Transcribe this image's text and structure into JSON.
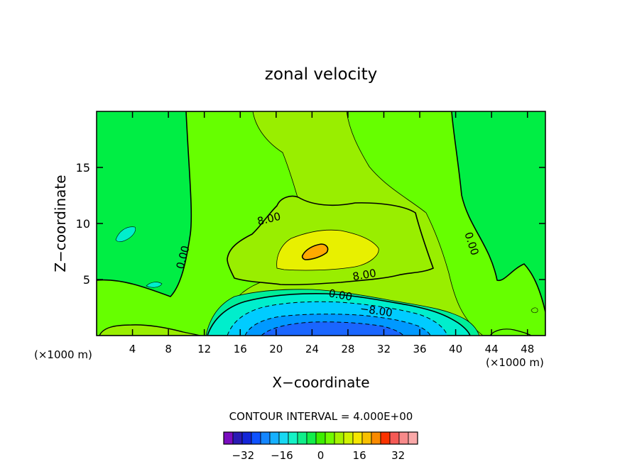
{
  "chart_data": {
    "type": "heatmap",
    "title": "zonal velocity",
    "xlabel": "X−coordinate",
    "ylabel": "Z−coordinate",
    "x_unit_left": "(×1000 m)",
    "x_unit_right": "(×1000 m)",
    "xlim": [
      0,
      50
    ],
    "ylim": [
      0,
      20
    ],
    "x_ticks": [
      4,
      8,
      12,
      16,
      20,
      24,
      28,
      32,
      36,
      40,
      44,
      48
    ],
    "y_ticks": [
      5,
      10,
      15
    ],
    "contour_interval_text": "CONTOUR INTERVAL =  4.000E+00",
    "contour_labels": [
      {
        "text": "8.00",
        "x": 19.3,
        "z": 10.1
      },
      {
        "text": "0.00",
        "x": 10.0,
        "z": 6.9
      },
      {
        "text": "0.00",
        "x": 41.4,
        "z": 8.1
      },
      {
        "text": "8.00",
        "x": 29.9,
        "z": 5.1
      },
      {
        "text": "0.00",
        "x": 27.1,
        "z": 3.3
      },
      {
        "text": "−8.00",
        "x": 31.1,
        "z": 1.9
      }
    ],
    "colorbar": {
      "levels": [
        -36,
        -32,
        -28,
        -24,
        -20,
        -16,
        -12,
        -8,
        -4,
        0,
        4,
        8,
        12,
        16,
        20,
        24,
        28,
        32,
        36
      ],
      "tick_labels": [
        "−32",
        "−16",
        "0",
        "16",
        "32"
      ],
      "tick_values": [
        -32,
        -16,
        0,
        16,
        32
      ],
      "colors": [
        "#7a0dbf",
        "#2a1ab4",
        "#1426d8",
        "#0f52ff",
        "#1486ff",
        "#16b0ff",
        "#18d8f2",
        "#14f2c6",
        "#10ee8a",
        "#12ee4a",
        "#3cee00",
        "#70fb00",
        "#a6f200",
        "#d0f200",
        "#f5e600",
        "#f8c000",
        "#fa8a00",
        "#fb3300",
        "#f55a55",
        "#f78a8a",
        "#f9a8a8"
      ]
    },
    "field_colors": {
      "background": "#00ee44",
      "plateau": "#66ff00",
      "ridge": "#99ee00",
      "core_yellow": "#e8f000",
      "core_orange": "#ffaa00",
      "shallow_low": "#00ee99",
      "neg_1": "#00eecc",
      "neg_2": "#00ccff",
      "neg_3": "#0099ff",
      "neg_4": "#1a66ff",
      "contour": "#000000"
    }
  }
}
